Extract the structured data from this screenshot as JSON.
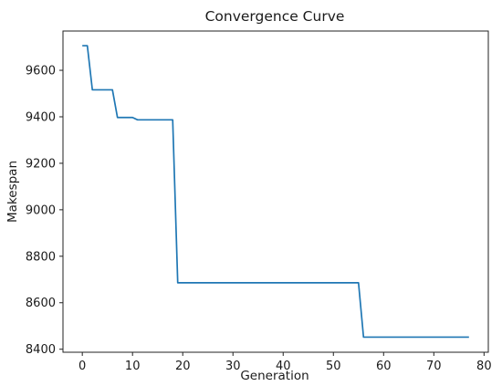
{
  "chart_data": {
    "type": "line",
    "title": "Convergence Curve",
    "xlabel": "Generation",
    "ylabel": "Makespan",
    "xlim": [
      -3.85,
      80.85
    ],
    "ylim": [
      8387,
      9769
    ],
    "xticks": [
      0,
      10,
      20,
      30,
      40,
      50,
      60,
      70,
      80
    ],
    "yticks": [
      8400,
      8600,
      8800,
      9000,
      9200,
      9400,
      9600
    ],
    "grid": false,
    "legend": "none",
    "series": [
      {
        "color": "#1f77b4",
        "x": [
          0,
          1,
          2,
          3,
          4,
          5,
          6,
          7,
          8,
          9,
          10,
          11,
          12,
          13,
          14,
          15,
          16,
          17,
          18,
          19,
          20,
          21,
          22,
          23,
          24,
          25,
          26,
          27,
          28,
          29,
          30,
          31,
          32,
          33,
          34,
          35,
          36,
          37,
          38,
          39,
          40,
          41,
          42,
          43,
          44,
          45,
          46,
          47,
          48,
          49,
          50,
          51,
          52,
          53,
          54,
          55,
          56,
          57,
          58,
          59,
          60,
          61,
          62,
          63,
          64,
          65,
          66,
          67,
          68,
          69,
          70,
          71,
          72,
          73,
          74,
          75,
          76,
          77
        ],
        "y": [
          9706,
          9706,
          9516,
          9516,
          9516,
          9516,
          9516,
          9397,
          9397,
          9397,
          9397,
          9387,
          9387,
          9387,
          9387,
          9387,
          9387,
          9387,
          9387,
          8686,
          8686,
          8686,
          8686,
          8686,
          8686,
          8686,
          8686,
          8686,
          8686,
          8686,
          8686,
          8686,
          8686,
          8686,
          8686,
          8686,
          8686,
          8686,
          8686,
          8686,
          8686,
          8686,
          8686,
          8686,
          8686,
          8686,
          8686,
          8686,
          8686,
          8686,
          8686,
          8686,
          8686,
          8686,
          8686,
          8686,
          8452,
          8452,
          8452,
          8452,
          8452,
          8452,
          8452,
          8452,
          8452,
          8452,
          8452,
          8452,
          8452,
          8452,
          8452,
          8452,
          8452,
          8452,
          8452,
          8452,
          8452,
          8452
        ]
      }
    ]
  }
}
